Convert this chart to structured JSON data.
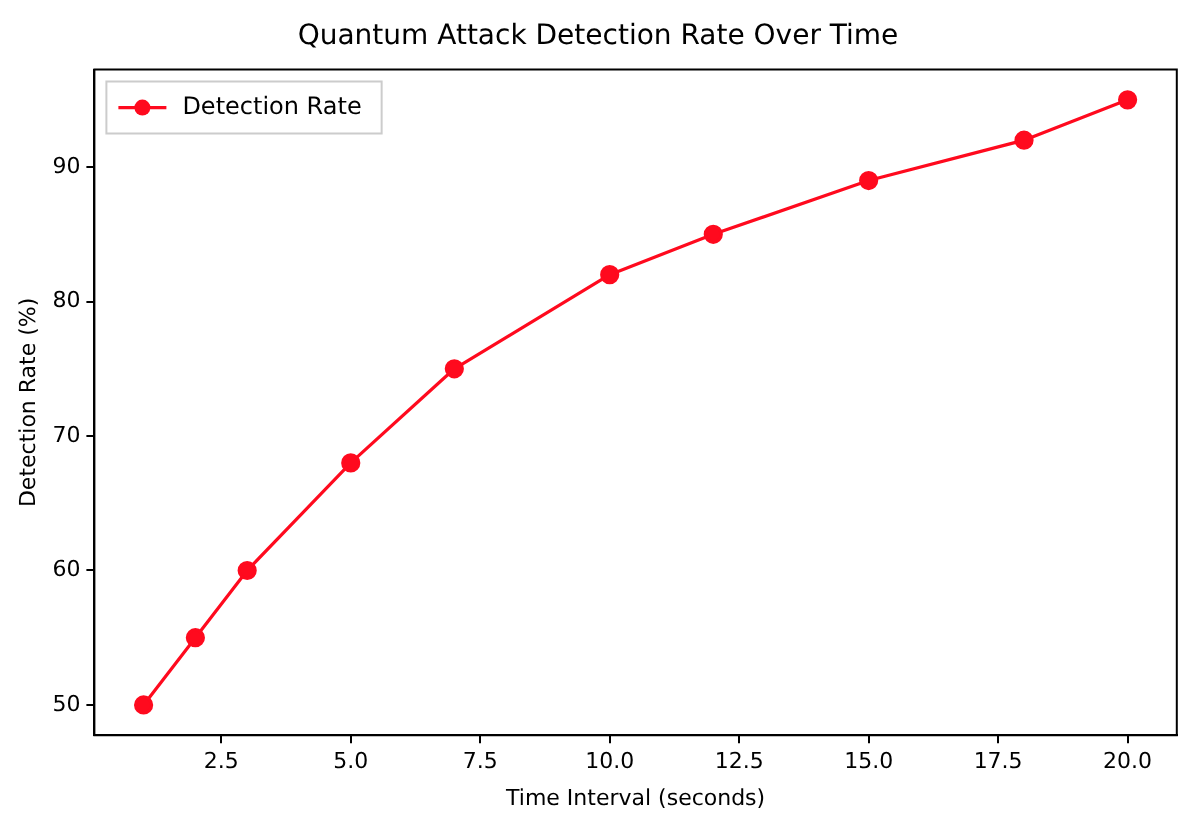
{
  "chart_data": {
    "type": "line",
    "title": "Quantum Attack Detection Rate Over Time",
    "xlabel": "Time Interval (seconds)",
    "ylabel": "Detection Rate (%)",
    "x": [
      1,
      2,
      3,
      5,
      7,
      10,
      12,
      15,
      18,
      20
    ],
    "series": [
      {
        "name": "Detection Rate",
        "color": "#ff0a1e",
        "values": [
          50,
          55,
          60,
          68,
          75,
          82,
          85,
          89,
          92,
          95
        ]
      }
    ],
    "xlim": [
      0.05,
      20.95
    ],
    "xticks": [
      {
        "value": 2.5,
        "label": "2.5"
      },
      {
        "value": 5,
        "label": "5.0"
      },
      {
        "value": 7.5,
        "label": "7.5"
      },
      {
        "value": 10,
        "label": "10.0"
      },
      {
        "value": 12.5,
        "label": "12.5"
      },
      {
        "value": 15,
        "label": "15.0"
      },
      {
        "value": 17.5,
        "label": "17.5"
      },
      {
        "value": 20,
        "label": "20.0"
      }
    ],
    "ylim": [
      47.75,
      97.25
    ],
    "yticks": [
      50,
      60,
      70,
      80,
      90
    ],
    "legend": "top left",
    "marker": "circle",
    "line_style": "solid",
    "grid": false
  }
}
